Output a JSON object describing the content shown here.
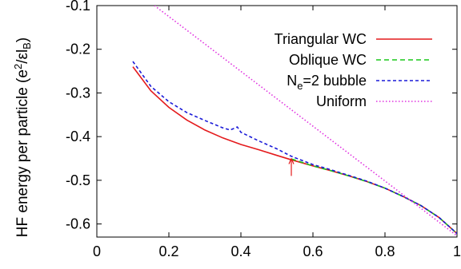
{
  "chart_data": {
    "type": "line",
    "title": "",
    "xlabel": "",
    "ylabel": {
      "prefix": "HF energy per particle (e",
      "sup": "2",
      "mid": "/εl",
      "sub": "B",
      "suffix": ")"
    },
    "xlim": [
      0,
      1
    ],
    "ylim": [
      -0.63,
      -0.1
    ],
    "x_ticks": [
      0,
      0.2,
      0.4,
      0.6,
      0.8,
      1
    ],
    "x_tick_labels": [
      "0",
      "0.2",
      "0.4",
      "0.6",
      "0.8",
      "1"
    ],
    "y_ticks": [
      -0.1,
      -0.2,
      -0.3,
      -0.4,
      -0.5,
      -0.6
    ],
    "y_tick_labels": [
      "-0.1",
      "-0.2",
      "-0.3",
      "-0.4",
      "-0.5",
      "-0.6"
    ],
    "grid": false,
    "legend_position": "top-right",
    "annotation": {
      "type": "arrow",
      "x": 0.54,
      "y_from": -0.45,
      "y_to": -0.49,
      "color": "#e41a1c"
    },
    "series": [
      {
        "name": "Triangular WC",
        "legend": {
          "prefix": "Triangular WC"
        },
        "color": "#e41a1c",
        "dash": "solid",
        "x": [
          0.1,
          0.15,
          0.2,
          0.25,
          0.3,
          0.35,
          0.4,
          0.45,
          0.5,
          0.54,
          0.6,
          0.65,
          0.7,
          0.75,
          0.8,
          0.85,
          0.9,
          0.95,
          1.0
        ],
        "y": [
          -0.24,
          -0.295,
          -0.333,
          -0.362,
          -0.385,
          -0.403,
          -0.418,
          -0.43,
          -0.443,
          -0.453,
          -0.467,
          -0.478,
          -0.49,
          -0.503,
          -0.518,
          -0.537,
          -0.558,
          -0.585,
          -0.622
        ]
      },
      {
        "name": "Oblique WC",
        "legend": {
          "prefix": "Oblique WC"
        },
        "color": "#19c819",
        "dash": "6,4",
        "x": [
          0.54,
          0.6,
          0.65,
          0.7,
          0.75,
          0.8,
          0.85,
          0.9,
          0.95,
          1.0
        ],
        "y": [
          -0.451,
          -0.467,
          -0.478,
          -0.49,
          -0.503,
          -0.518,
          -0.537,
          -0.558,
          -0.585,
          -0.622
        ]
      },
      {
        "name": "Ne=2 bubble",
        "legend": {
          "prefix": "N",
          "sub": "e",
          "suffix": "=2 bubble"
        },
        "color": "#1a1ad8",
        "dash": "4,3",
        "x": [
          0.1,
          0.15,
          0.2,
          0.25,
          0.3,
          0.35,
          0.37,
          0.39,
          0.4,
          0.45,
          0.5,
          0.54,
          0.6,
          0.65,
          0.7,
          0.75,
          0.8,
          0.85,
          0.9,
          0.95,
          1.0
        ],
        "y": [
          -0.228,
          -0.285,
          -0.32,
          -0.345,
          -0.363,
          -0.38,
          -0.385,
          -0.378,
          -0.39,
          -0.41,
          -0.428,
          -0.445,
          -0.464,
          -0.476,
          -0.489,
          -0.502,
          -0.518,
          -0.537,
          -0.558,
          -0.585,
          -0.622
        ]
      },
      {
        "name": "Uniform",
        "legend": {
          "prefix": "Uniform"
        },
        "color": "#e033e0",
        "dash": "1.5,2.5",
        "x": [
          0.16,
          1.0
        ],
        "y": [
          -0.1,
          -0.627
        ]
      }
    ]
  }
}
